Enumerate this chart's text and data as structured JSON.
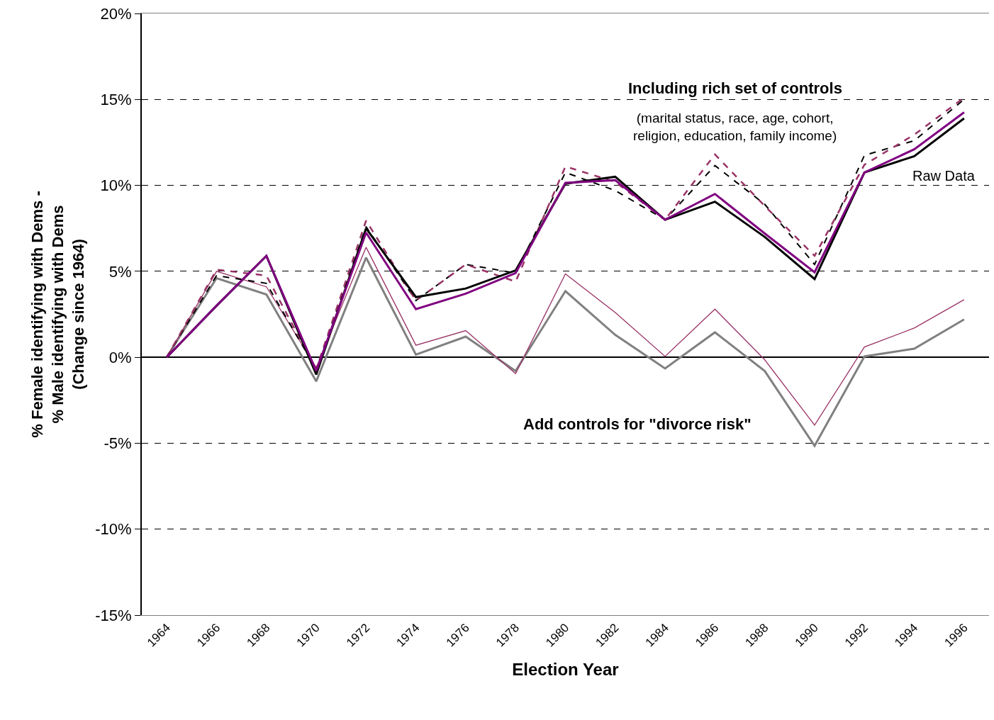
{
  "chart_data": {
    "type": "line",
    "xlabel": "Election Year",
    "ylabel": "% Female identifying with Dems -\n% Male identifying with Dems\n(Change since 1964)",
    "categories": [
      "1964",
      "1966",
      "1968",
      "1970",
      "1972",
      "1974",
      "1976",
      "1978",
      "1980",
      "1982",
      "1984",
      "1986",
      "1988",
      "1990",
      "1992",
      "1994",
      "1996"
    ],
    "series": [
      {
        "color": "#808080",
        "line_style": "solid",
        "values": [
          0,
          4.6,
          3.65,
          -1.4,
          5.8,
          0.15,
          1.2,
          -0.8,
          3.85,
          1.3,
          -0.65,
          1.45,
          -0.8,
          -5.15,
          0.05,
          0.5,
          2.2
        ]
      },
      {
        "color": "#993366",
        "line_style": "solid",
        "values": [
          0,
          5.0,
          4.1,
          -0.6,
          6.4,
          0.7,
          1.55,
          -0.95,
          4.85,
          2.6,
          0.05,
          2.8,
          -0.15,
          -3.95,
          0.6,
          1.7,
          3.35
        ]
      },
      {
        "color": "#000000",
        "line_style": "dashed",
        "values": [
          0,
          4.75,
          4.3,
          -0.7,
          7.6,
          3.3,
          5.4,
          4.9,
          10.75,
          9.7,
          8.0,
          11.15,
          8.9,
          5.4,
          11.75,
          12.6,
          15.0
        ]
      },
      {
        "color": "#993366",
        "line_style": "dashed",
        "values": [
          0,
          5.1,
          4.75,
          -0.7,
          7.95,
          3.3,
          5.4,
          4.4,
          11.1,
          10.2,
          8.0,
          11.8,
          8.8,
          5.9,
          11.2,
          12.95,
          15.1
        ]
      },
      {
        "color": "#000000",
        "line_style": "solid",
        "values": [
          0,
          3.0,
          5.9,
          -1.0,
          7.5,
          3.5,
          4.0,
          5.05,
          10.1,
          10.5,
          8.0,
          9.05,
          7.0,
          4.55,
          10.75,
          11.7,
          13.9
        ]
      },
      {
        "color": "#800080",
        "line_style": "solid",
        "values": [
          0,
          3.0,
          5.9,
          -0.8,
          7.25,
          2.8,
          3.7,
          4.9,
          10.15,
          10.3,
          8.0,
          9.5,
          7.2,
          4.95,
          10.75,
          12.1,
          14.25
        ]
      }
    ],
    "ylim": [
      -15,
      20
    ],
    "yticks": [
      {
        "value": -15,
        "label": "-15%"
      },
      {
        "value": -10,
        "label": "-10%"
      },
      {
        "value": -5,
        "label": "-5%"
      },
      {
        "value": 0,
        "label": "0%"
      },
      {
        "value": 5,
        "label": "5%"
      },
      {
        "value": 10,
        "label": "10%"
      },
      {
        "value": 15,
        "label": "15%"
      },
      {
        "value": 20,
        "label": "20%"
      }
    ],
    "grid": "y",
    "marker": "none",
    "annotations": [
      "Including rich set of controls",
      "(marital status, race, age, cohort,\nreligion, education, family income)",
      "Raw Data",
      "Add controls for \"divorce risk\""
    ]
  }
}
